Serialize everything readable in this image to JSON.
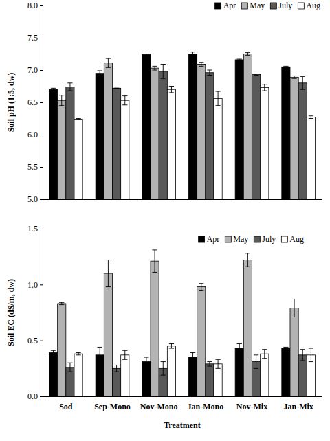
{
  "chart_data": [
    {
      "type": "bar",
      "y_label": "Soil pH (1:5, dw)",
      "categories": [
        null,
        null,
        null,
        null,
        null,
        null
      ],
      "series": [
        {
          "name": "Apr",
          "color": "#000000",
          "values": [
            6.7,
            6.95,
            7.24,
            7.25,
            7.16,
            7.05
          ],
          "errors": [
            0.02,
            0.04,
            0.01,
            0.03,
            0.01,
            0.01
          ]
        },
        {
          "name": "May",
          "color": "#b3b3b3",
          "values": [
            6.53,
            7.11,
            7.03,
            7.09,
            7.25,
            6.89
          ],
          "errors": [
            0.08,
            0.07,
            0.03,
            0.03,
            0.02,
            0.02
          ]
        },
        {
          "name": "July",
          "color": "#595959",
          "values": [
            6.74,
            6.72,
            6.98,
            6.96,
            6.93,
            6.8
          ],
          "errors": [
            0.06,
            0.0,
            0.11,
            0.04,
            0.01,
            0.1
          ]
        },
        {
          "name": "Aug",
          "color": "#ffffff",
          "values": [
            6.24,
            6.53,
            6.7,
            6.56,
            6.73,
            6.27
          ],
          "errors": [
            0.01,
            0.07,
            0.05,
            0.11,
            0.05,
            0.02
          ]
        }
      ],
      "ylim": [
        5.0,
        8.0
      ],
      "yticks": [
        {
          "value": 5,
          "label": "5.0"
        },
        {
          "value": 5.5,
          "label": "5.5"
        },
        {
          "value": 6,
          "label": "6.0"
        },
        {
          "value": 6.5,
          "label": "6.5"
        },
        {
          "value": 7,
          "label": "7.0"
        },
        {
          "value": 7.5,
          "label": "7.5"
        },
        {
          "value": 8,
          "label": "8.0"
        }
      ],
      "legend": "top-right"
    },
    {
      "type": "bar",
      "y_label": "Soil EC (dS/m, dw)",
      "x_label": "Treatment",
      "categories": [
        "Sod",
        "Sep-Mono",
        "Nov-Mono",
        "Jan-Mono",
        "Nov-Mix",
        "Jan-Mix"
      ],
      "series": [
        {
          "name": "Apr",
          "color": "#000000",
          "values": [
            0.39,
            0.37,
            0.31,
            0.35,
            0.43,
            0.43
          ],
          "errors": [
            0.02,
            0.07,
            0.04,
            0.04,
            0.04,
            0.01
          ]
        },
        {
          "name": "May",
          "color": "#b3b3b3",
          "values": [
            0.83,
            1.1,
            1.21,
            0.98,
            1.22,
            0.79
          ],
          "errors": [
            0.01,
            0.12,
            0.1,
            0.03,
            0.06,
            0.08
          ]
        },
        {
          "name": "July",
          "color": "#595959",
          "values": [
            0.26,
            0.25,
            0.25,
            0.29,
            0.31,
            0.37
          ],
          "errors": [
            0.04,
            0.03,
            0.06,
            0.02,
            0.06,
            0.05
          ]
        },
        {
          "name": "Aug",
          "color": "#ffffff",
          "values": [
            0.38,
            0.37,
            0.45,
            0.29,
            0.38,
            0.37
          ],
          "errors": [
            0.01,
            0.04,
            0.02,
            0.04,
            0.04,
            0.06
          ]
        }
      ],
      "ylim": [
        0.0,
        1.5
      ],
      "yticks": [
        {
          "value": 0,
          "label": "0.0"
        },
        {
          "value": 0.5,
          "label": "0.5"
        },
        {
          "value": 1,
          "label": "1.0"
        },
        {
          "value": 1.5,
          "label": "1.5"
        }
      ],
      "legend": "top-right"
    }
  ]
}
